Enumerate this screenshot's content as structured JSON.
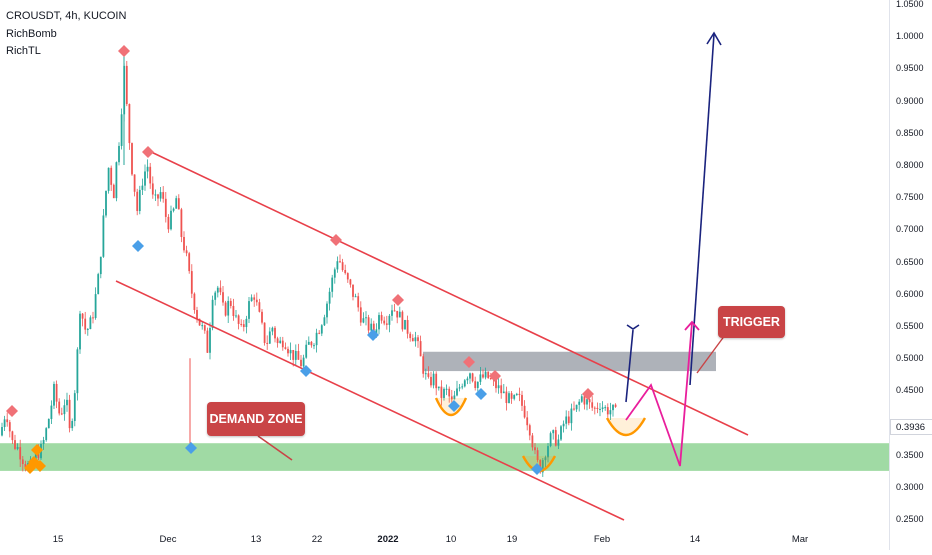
{
  "header": {
    "title": "CROUSDT, 4h, KUCOIN",
    "indicators": [
      "RichBomb",
      "RichTL"
    ]
  },
  "annotations": {
    "demand_zone_label": "DEMAND ZONE",
    "trigger_label": "TRIGGER"
  },
  "colors": {
    "up_candle": "#26a69a",
    "down_candle": "#ef5350",
    "channel_line": "#e8404a",
    "demand_zone": "#8fd394",
    "resistance_box": "#a0a4ad",
    "callout_bg": "#c94446",
    "arrow_navy": "#1a237e",
    "arrow_magenta": "#e91e9c",
    "marker_red": "#f07177",
    "marker_blue": "#4a9fe8",
    "marker_orange": "#ff9800"
  },
  "chart_data": {
    "type": "candlestick",
    "symbol": "CROUSDT",
    "timeframe": "4h",
    "exchange": "KUCOIN",
    "current_price_label": "0.3936",
    "y_tick_labels": [
      "1.0500",
      "1.0000",
      "0.9500",
      "0.9000",
      "0.8500",
      "0.8000",
      "0.7500",
      "0.7000",
      "0.6500",
      "0.6000",
      "0.5500",
      "0.5000",
      "0.4500",
      "0.4000",
      "0.3500",
      "0.3000",
      "0.2500"
    ],
    "x_tick_labels": [
      "15",
      "Dec",
      "13",
      "22",
      "2022",
      "10",
      "19",
      "Feb",
      "14",
      "Mar"
    ],
    "price_path": [
      [
        0,
        0.38
      ],
      [
        6,
        0.42
      ],
      [
        12,
        0.37
      ],
      [
        18,
        0.36
      ],
      [
        24,
        0.34
      ],
      [
        30,
        0.33
      ],
      [
        36,
        0.35
      ],
      [
        42,
        0.36
      ],
      [
        48,
        0.4
      ],
      [
        54,
        0.45
      ],
      [
        60,
        0.41
      ],
      [
        66,
        0.44
      ],
      [
        70,
        0.38
      ],
      [
        76,
        0.47
      ],
      [
        80,
        0.58
      ],
      [
        86,
        0.54
      ],
      [
        92,
        0.56
      ],
      [
        98,
        0.62
      ],
      [
        104,
        0.72
      ],
      [
        108,
        0.8
      ],
      [
        114,
        0.76
      ],
      [
        120,
        0.86
      ],
      [
        124,
        0.95
      ],
      [
        128,
        0.86
      ],
      [
        132,
        0.8
      ],
      [
        138,
        0.72
      ],
      [
        142,
        0.78
      ],
      [
        148,
        0.8
      ],
      [
        154,
        0.73
      ],
      [
        160,
        0.76
      ],
      [
        166,
        0.72
      ],
      [
        172,
        0.71
      ],
      [
        176,
        0.75
      ],
      [
        180,
        0.7
      ],
      [
        186,
        0.66
      ],
      [
        192,
        0.6
      ],
      [
        198,
        0.56
      ],
      [
        204,
        0.54
      ],
      [
        208,
        0.51
      ],
      [
        212,
        0.6
      ],
      [
        218,
        0.61
      ],
      [
        224,
        0.57
      ],
      [
        230,
        0.59
      ],
      [
        236,
        0.56
      ],
      [
        242,
        0.54
      ],
      [
        248,
        0.58
      ],
      [
        254,
        0.6
      ],
      [
        260,
        0.56
      ],
      [
        266,
        0.52
      ],
      [
        272,
        0.55
      ],
      [
        278,
        0.52
      ],
      [
        284,
        0.53
      ],
      [
        290,
        0.51
      ],
      [
        296,
        0.5
      ],
      [
        302,
        0.49
      ],
      [
        308,
        0.52
      ],
      [
        314,
        0.53
      ],
      [
        320,
        0.55
      ],
      [
        326,
        0.58
      ],
      [
        332,
        0.62
      ],
      [
        338,
        0.66
      ],
      [
        344,
        0.63
      ],
      [
        350,
        0.61
      ],
      [
        356,
        0.59
      ],
      [
        362,
        0.56
      ],
      [
        368,
        0.55
      ],
      [
        374,
        0.54
      ],
      [
        380,
        0.57
      ],
      [
        386,
        0.56
      ],
      [
        392,
        0.58
      ],
      [
        398,
        0.57
      ],
      [
        404,
        0.55
      ],
      [
        410,
        0.54
      ],
      [
        416,
        0.53
      ],
      [
        422,
        0.49
      ],
      [
        428,
        0.46
      ],
      [
        434,
        0.47
      ],
      [
        440,
        0.44
      ],
      [
        446,
        0.45
      ],
      [
        452,
        0.43
      ],
      [
        458,
        0.45
      ],
      [
        464,
        0.47
      ],
      [
        470,
        0.48
      ],
      [
        476,
        0.46
      ],
      [
        482,
        0.47
      ],
      [
        488,
        0.47
      ],
      [
        494,
        0.46
      ],
      [
        500,
        0.45
      ],
      [
        506,
        0.44
      ],
      [
        512,
        0.43
      ],
      [
        518,
        0.44
      ],
      [
        524,
        0.42
      ],
      [
        530,
        0.39
      ],
      [
        536,
        0.34
      ],
      [
        540,
        0.33
      ],
      [
        546,
        0.36
      ],
      [
        552,
        0.38
      ],
      [
        558,
        0.37
      ],
      [
        564,
        0.4
      ],
      [
        570,
        0.41
      ],
      [
        576,
        0.42
      ],
      [
        582,
        0.44
      ],
      [
        588,
        0.43
      ],
      [
        594,
        0.42
      ],
      [
        600,
        0.43
      ],
      [
        606,
        0.42
      ],
      [
        612,
        0.42
      ],
      [
        618,
        0.41
      ]
    ],
    "zones": {
      "demand_zone": [
        0.325,
        0.368
      ],
      "resistance_box": [
        0.48,
        0.51
      ]
    }
  }
}
